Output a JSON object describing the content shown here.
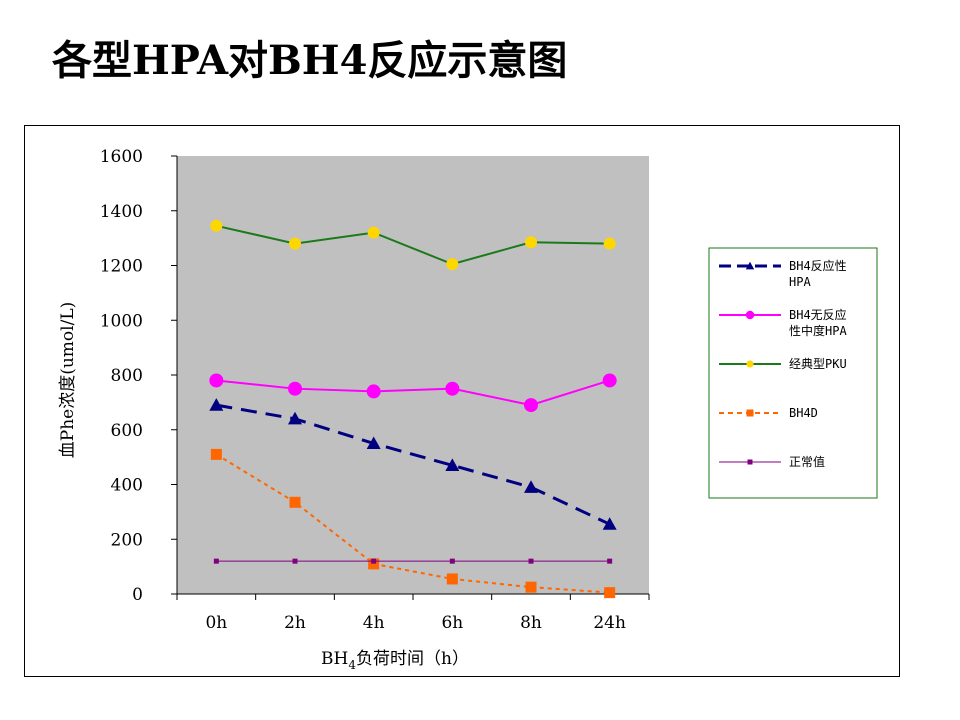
{
  "slide": {
    "title": "各型HPA对BH4反应示意图"
  },
  "chart_data": {
    "type": "line",
    "categories": [
      "0h",
      "2h",
      "4h",
      "6h",
      "8h",
      "24h"
    ],
    "xlabel": {
      "prefix": "BH",
      "subscript": "4",
      "suffix": "负荷时间（h）"
    },
    "ylabel": "血Phe浓度(umol/L)",
    "ylim": [
      0,
      1600
    ],
    "yticks": [
      "0",
      "200",
      "400",
      "600",
      "800",
      "1000",
      "1200",
      "1400",
      "1600"
    ],
    "ytick_values": [
      0,
      200,
      400,
      600,
      800,
      1000,
      1200,
      1400,
      1600
    ],
    "plot_background": "#c0c0c0",
    "grid": false,
    "legend_position": "right",
    "series": [
      {
        "name": [
          "BH4反应性",
          "HPA"
        ],
        "values": [
          690,
          640,
          550,
          470,
          390,
          255
        ],
        "color": "#000080",
        "dash": "dashed",
        "marker": "triangle"
      },
      {
        "name": [
          "BH4无反应",
          "性中度HPA"
        ],
        "values": [
          780,
          750,
          740,
          750,
          690,
          780
        ],
        "color": "#ff00ff",
        "dash": "solid",
        "marker": "circle"
      },
      {
        "name": [
          "经典型PKU"
        ],
        "values": [
          1345,
          1280,
          1320,
          1205,
          1285,
          1280
        ],
        "color": "#1a7a1a",
        "dash": "solid",
        "marker": "diamond",
        "marker_color": "#ffd700"
      },
      {
        "name": [
          "BH4D"
        ],
        "values": [
          510,
          335,
          110,
          55,
          25,
          5
        ],
        "color": "#ff6600",
        "dash": "dotted",
        "marker": "square"
      },
      {
        "name": [
          "正常值"
        ],
        "values": [
          120,
          120,
          120,
          120,
          120,
          120
        ],
        "color": "#800080",
        "dash": "solid",
        "marker": "small-square"
      }
    ]
  }
}
